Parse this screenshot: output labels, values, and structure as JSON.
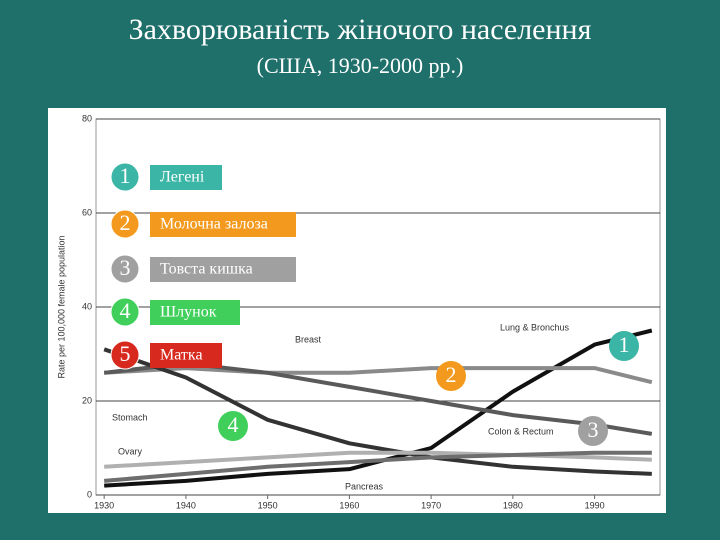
{
  "slide": {
    "title": "Захворюваність жіночого населення",
    "subtitle": "(США, 1930-2000 рр.)"
  },
  "chart_data": {
    "type": "line",
    "ylabel": "Rate per 100,000 female population",
    "x": [
      1930,
      1940,
      1950,
      1960,
      1970,
      1980,
      1990,
      1997
    ],
    "xlim": [
      1929,
      1998
    ],
    "xticks": [
      1930,
      1940,
      1950,
      1960,
      1970,
      1980,
      1990
    ],
    "ylim": [
      0,
      80
    ],
    "yticks": [
      0,
      20,
      40,
      60,
      80
    ],
    "grid": true,
    "series": [
      {
        "name": "Lung & Bronchus",
        "color": "#111111",
        "values": [
          2,
          3,
          4.5,
          5.5,
          10,
          22,
          32,
          35
        ]
      },
      {
        "name": "Breast",
        "color": "#8a8a8a",
        "values": [
          26,
          27,
          26,
          26,
          27,
          27,
          27,
          24
        ]
      },
      {
        "name": "Colon & Rectum",
        "color": "#5a5a5a",
        "values": [
          26,
          28,
          26,
          23,
          20,
          17,
          15,
          13
        ]
      },
      {
        "name": "Stomach",
        "color": "#333333",
        "values": [
          31,
          25,
          16,
          11,
          8,
          6,
          5,
          4.5
        ]
      },
      {
        "name": "Ovary",
        "color": "#b0b0b0",
        "values": [
          6,
          7,
          8,
          9,
          9,
          8.5,
          8,
          7.5
        ]
      },
      {
        "name": "Pancreas",
        "color": "#6e6e6e",
        "values": [
          3,
          4.5,
          6,
          7,
          8,
          8.5,
          9,
          9
        ]
      }
    ]
  },
  "callouts": [
    {
      "number": "1",
      "label": "Легені",
      "color": "#3bb5a5"
    },
    {
      "number": "2",
      "label": "Молочна залоза",
      "color": "#f39a1e"
    },
    {
      "number": "3",
      "label": "Товста кишка",
      "color": "#a0a0a0"
    },
    {
      "number": "4",
      "label": "Шлунок",
      "color": "#3fcf5a"
    },
    {
      "number": "5",
      "label": "Матка",
      "color": "#d8291f"
    }
  ],
  "markers": [
    {
      "number": "1",
      "color": "#3bb5a5"
    },
    {
      "number": "2",
      "color": "#f39a1e"
    },
    {
      "number": "3",
      "color": "#a0a0a0"
    },
    {
      "number": "4",
      "color": "#3fcf5a"
    }
  ]
}
